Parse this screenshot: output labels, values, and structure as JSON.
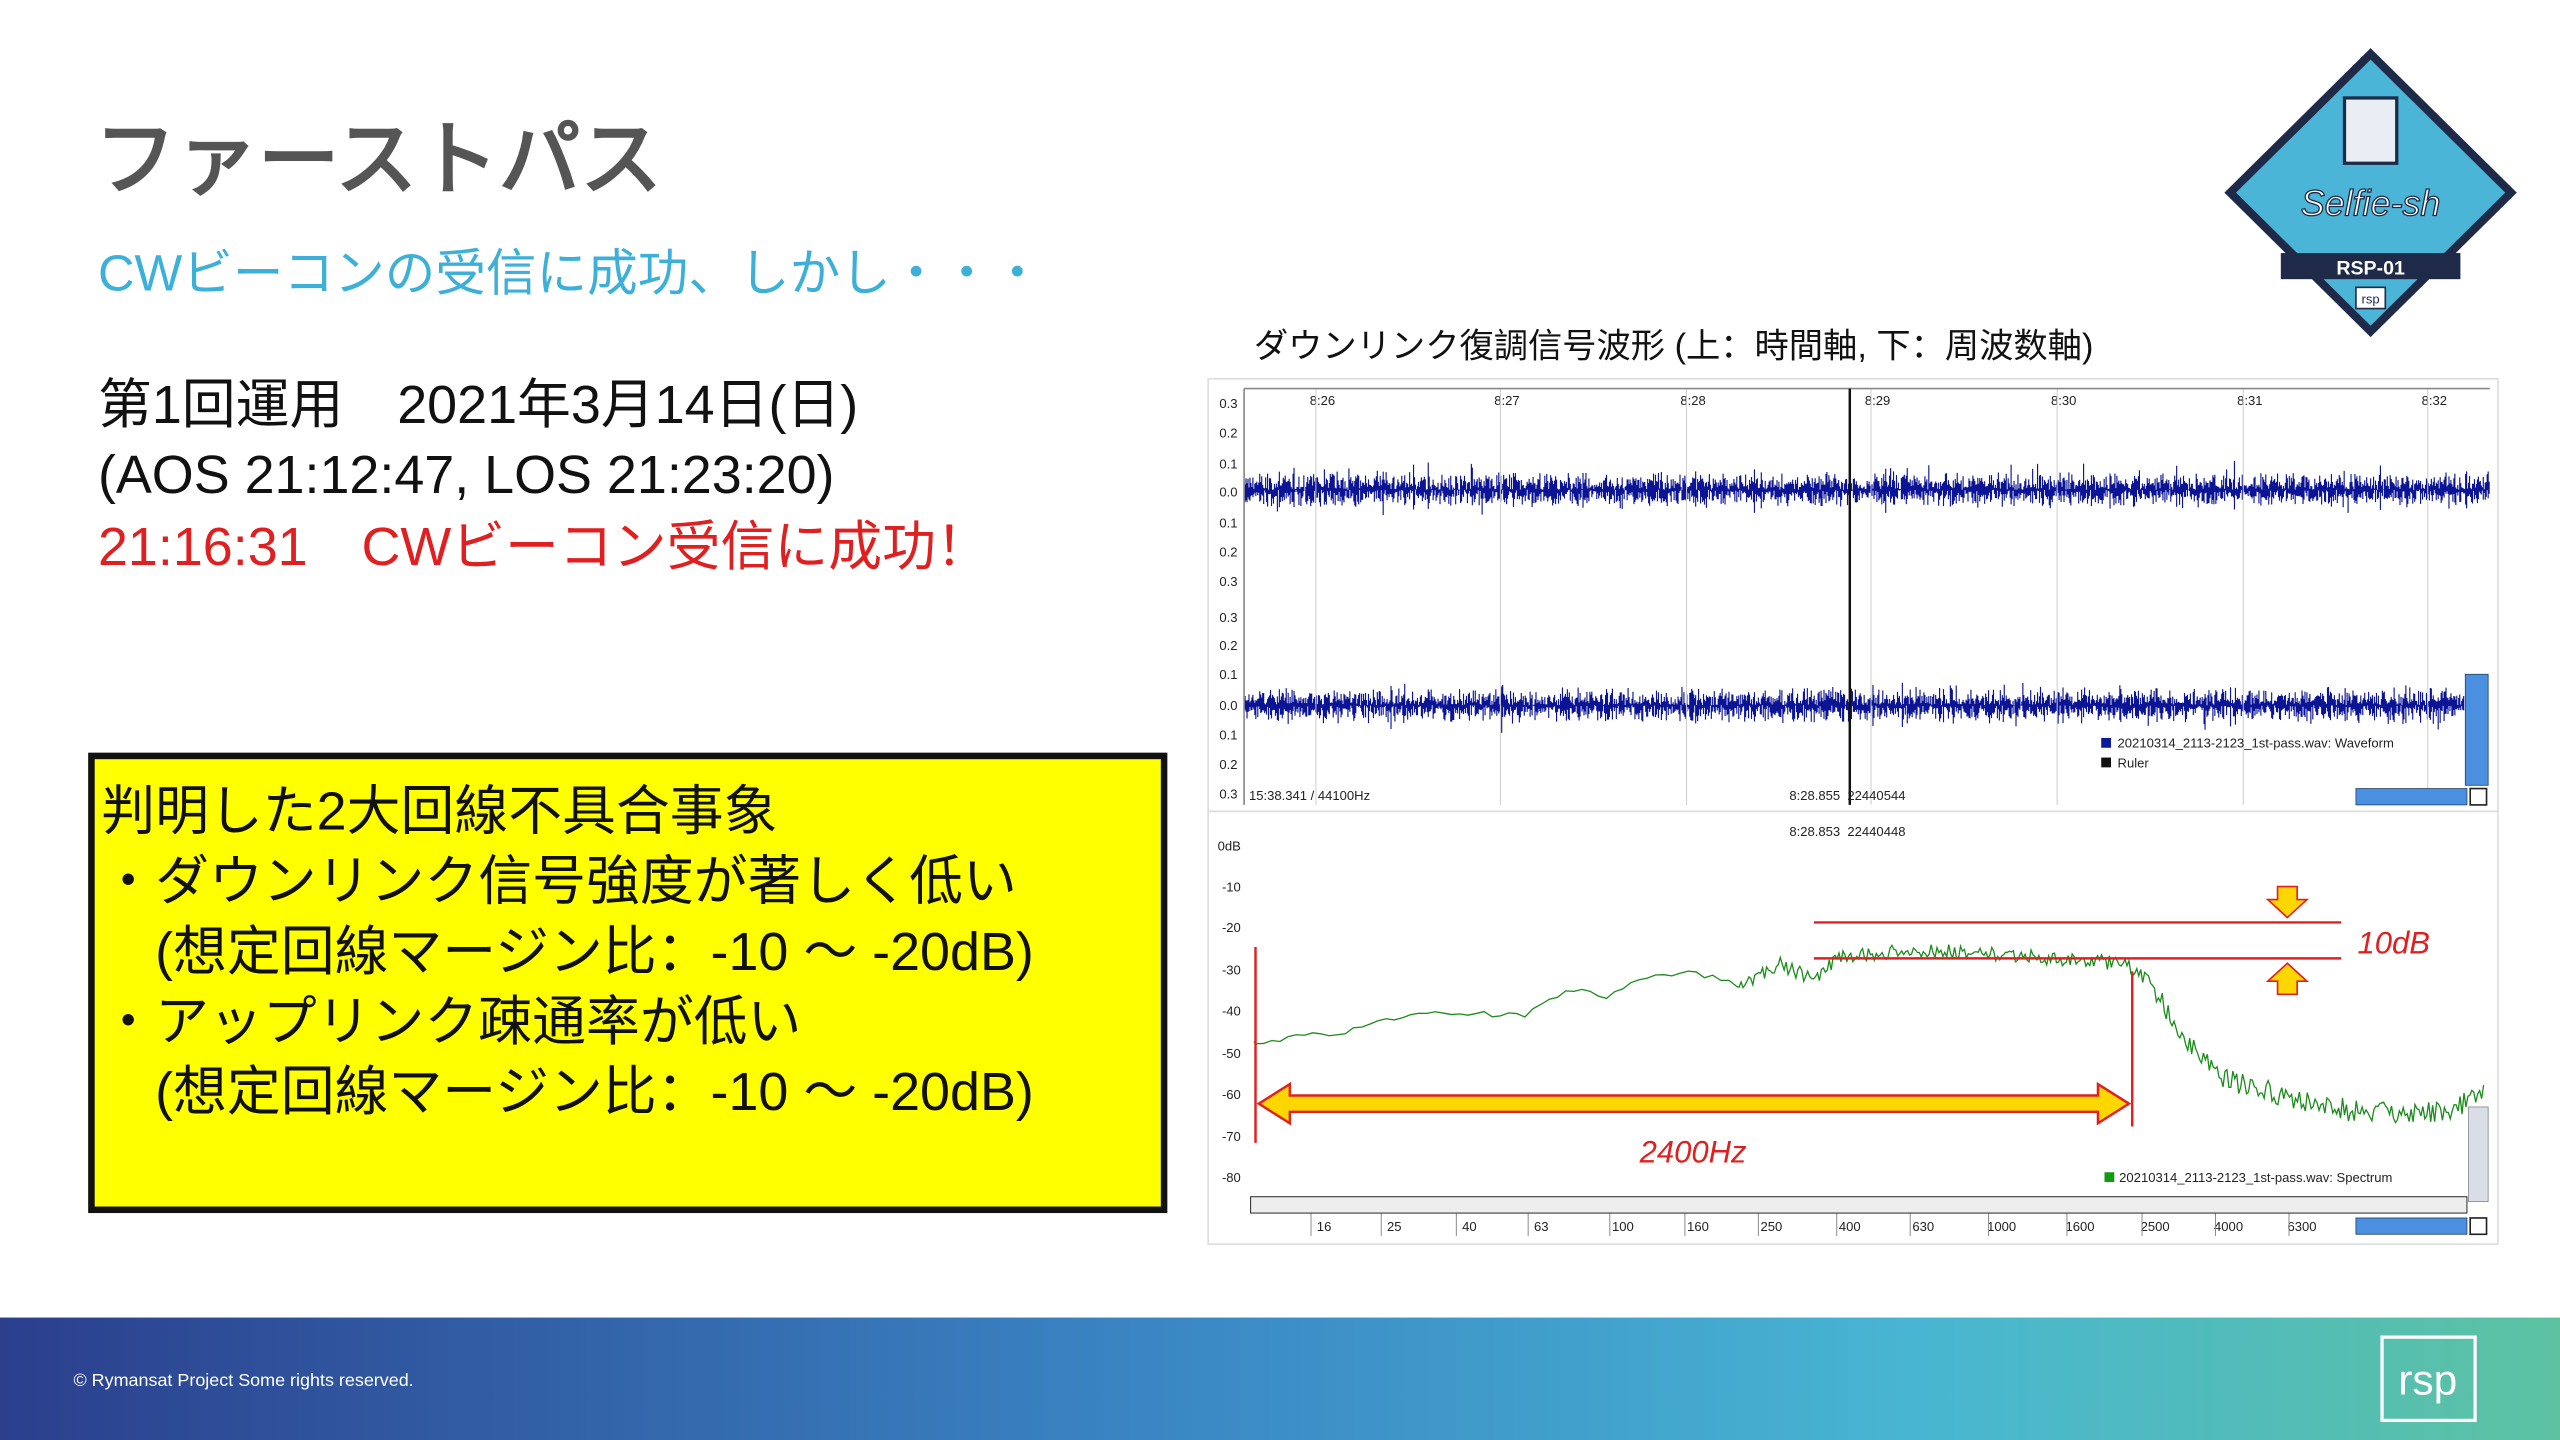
{
  "slide": {
    "title": "ファーストパス",
    "subtitle": "CWビーコンの受信に成功、しかし・・・",
    "operation": [
      "第1回運用　2021年3月14日(日)",
      "(AOS 21:12:47, LOS 21:23:20)",
      "21:16:31　CWビーコン受信に成功！"
    ],
    "findings": {
      "heading": "判明した2大回線不具合事象",
      "items": [
        "・ダウンリンク信号強度が著しく低い",
        "　(想定回線マージン比：-10 ～ -20dB)",
        "・アップリンク疎通率が低い",
        "　(想定回線マージン比：-10 ～ -20dB)"
      ]
    }
  },
  "figure": {
    "caption": "ダウンリンク復調信号波形 (上：時間軸, 下：周波数軸)",
    "waveform": {
      "time_labels": [
        "8:26",
        "8:27",
        "8:28",
        "8:29",
        "8:30",
        "8:31",
        "8:32"
      ],
      "amplitude_labels": [
        "0.3",
        "0.2",
        "0.1",
        "0.0",
        "0.1",
        "0.2",
        "0.3",
        "0.3",
        "0.2",
        "0.1",
        "0.0",
        "0.1",
        "0.2",
        "0.3"
      ],
      "status_left": "15:38.341 / 44100Hz",
      "status_cursor": "8:28.855  22440544",
      "legend": [
        "20210314_2113-2123_1st-pass.wav: Waveform",
        "Ruler"
      ]
    },
    "spectrum": {
      "cursor": "8:28.853  22440448",
      "db_labels": [
        "0dB",
        "-10",
        "-20",
        "-30",
        "-40",
        "-50",
        "-60",
        "-70",
        "-80"
      ],
      "freq_labels": [
        "16",
        "25",
        "40",
        "63",
        "100",
        "160",
        "250",
        "400",
        "630",
        "1000",
        "1600",
        "2500",
        "4000",
        "6300"
      ],
      "legend": "20210314_2113-2123_1st-pass.wav: Spectrum",
      "annotations": {
        "margin": "10dB",
        "bandwidth": "2400Hz"
      }
    }
  },
  "logo": {
    "mission": "Selfie-sh",
    "model": "RSP-01",
    "badge": "rsp"
  },
  "footer": {
    "copyright": "© Rymansat Project Some rights reserved.",
    "logo": "rsp"
  }
}
